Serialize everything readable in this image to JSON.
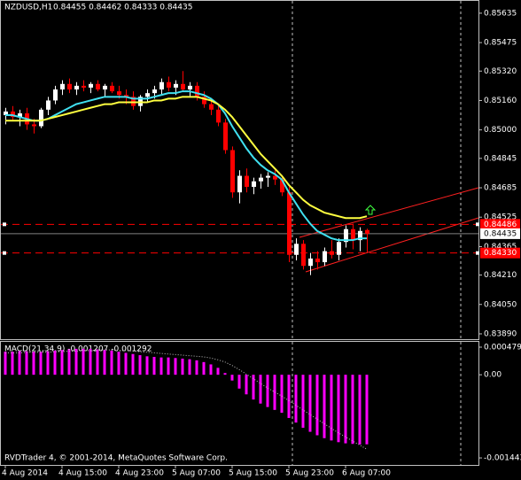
{
  "chart_data": [
    {
      "type": "candlestick",
      "title": "NZDUSD,H1",
      "subtitle": "0.84455 0.84462 0.84333 0.84435",
      "categories": [
        "4 Aug 2014",
        null,
        null,
        null,
        null,
        null,
        null,
        null,
        "4 Aug 15:00",
        null,
        null,
        null,
        null,
        null,
        null,
        null,
        "4 Aug 23:00",
        null,
        null,
        null,
        null,
        null,
        null,
        null,
        "5 Aug 07:00",
        null,
        null,
        null,
        null,
        null,
        null,
        null,
        "5 Aug 15:00",
        null,
        null,
        null,
        null,
        null,
        null,
        null,
        "5 Aug 23:00",
        null,
        null,
        null,
        null,
        null,
        null,
        null,
        "6 Aug 07:00",
        null,
        null,
        null
      ],
      "open": [
        0.8508,
        0.851,
        0.8507,
        0.8509,
        0.8503,
        0.8502,
        0.8511,
        0.8516,
        0.8522,
        0.8525,
        0.8522,
        0.8524,
        0.8523,
        0.8525,
        0.8522,
        0.8524,
        0.8521,
        0.8519,
        0.8518,
        0.8513,
        0.8518,
        0.852,
        0.8522,
        0.8526,
        0.8523,
        0.8525,
        0.8522,
        0.8524,
        0.8518,
        0.8514,
        0.8511,
        0.8504,
        0.8489,
        0.8466,
        0.8475,
        0.8469,
        0.8472,
        0.8474,
        0.8475,
        0.8473,
        0.8466,
        0.8432,
        0.8438,
        0.8426,
        0.843,
        0.8428,
        0.8434,
        0.8432,
        0.8439,
        0.8446,
        0.844,
        0.84455
      ],
      "high": [
        0.8512,
        0.8513,
        0.8511,
        0.8512,
        0.8506,
        0.8512,
        0.8518,
        0.8524,
        0.8527,
        0.8528,
        0.8526,
        0.8527,
        0.8526,
        0.8527,
        0.8525,
        0.8526,
        0.8524,
        0.8522,
        0.8521,
        0.8519,
        0.8522,
        0.8524,
        0.8528,
        0.8529,
        0.8527,
        0.8532,
        0.8526,
        0.8526,
        0.8521,
        0.8517,
        0.8513,
        0.8506,
        0.8491,
        0.8478,
        0.8479,
        0.8474,
        0.8476,
        0.8477,
        0.8478,
        0.8475,
        0.8469,
        0.8441,
        0.844,
        0.8433,
        0.8434,
        0.8436,
        0.844,
        0.8441,
        0.8448,
        0.8449,
        0.8447,
        0.84462
      ],
      "low": [
        0.8503,
        0.8505,
        0.8502,
        0.85,
        0.8498,
        0.8501,
        0.8508,
        0.8514,
        0.8519,
        0.852,
        0.8519,
        0.8521,
        0.852,
        0.8521,
        0.8518,
        0.852,
        0.8517,
        0.8514,
        0.8511,
        0.851,
        0.8515,
        0.8517,
        0.8519,
        0.8521,
        0.8519,
        0.8521,
        0.8518,
        0.8516,
        0.8512,
        0.8508,
        0.8502,
        0.8487,
        0.8463,
        0.846,
        0.8466,
        0.8465,
        0.8468,
        0.8469,
        0.847,
        0.8464,
        0.8428,
        0.8429,
        0.8424,
        0.8421,
        0.8424,
        0.8426,
        0.843,
        0.8429,
        0.8436,
        0.8435,
        0.8434,
        0.84333
      ],
      "close": [
        0.851,
        0.8507,
        0.8509,
        0.8503,
        0.8502,
        0.8511,
        0.8516,
        0.8522,
        0.8525,
        0.8522,
        0.8524,
        0.8523,
        0.8525,
        0.8522,
        0.8524,
        0.8521,
        0.8519,
        0.8518,
        0.8513,
        0.8518,
        0.852,
        0.8522,
        0.8526,
        0.8523,
        0.8525,
        0.8522,
        0.8524,
        0.8518,
        0.8514,
        0.8511,
        0.8504,
        0.8489,
        0.8466,
        0.8475,
        0.8469,
        0.8472,
        0.8474,
        0.8475,
        0.8473,
        0.8466,
        0.8432,
        0.8438,
        0.8426,
        0.843,
        0.8428,
        0.8434,
        0.8432,
        0.8439,
        0.8446,
        0.844,
        0.8445,
        0.84435
      ],
      "up_color": "#ffffff",
      "down_color": "#ff0000",
      "lines": [
        {
          "color": "#40e0f0",
          "values": [
            0.8508,
            0.8508,
            0.8507,
            0.8506,
            0.8505,
            0.8505,
            0.8506,
            0.8508,
            0.851,
            0.8512,
            0.8514,
            0.8515,
            0.8516,
            0.8517,
            0.8518,
            0.8518,
            0.8518,
            0.8518,
            0.8517,
            0.8517,
            0.8517,
            0.8518,
            0.8519,
            0.852,
            0.852,
            0.8521,
            0.8521,
            0.852,
            0.8519,
            0.8517,
            0.8514,
            0.8509,
            0.8502,
            0.8496,
            0.849,
            0.8485,
            0.8481,
            0.8478,
            0.8476,
            0.8473,
            0.8466,
            0.846,
            0.8454,
            0.8449,
            0.8445,
            0.8443,
            0.8441,
            0.844,
            0.844,
            0.844,
            0.8441,
            0.8441
          ]
        },
        {
          "color": "#ffff40",
          "values": [
            0.8505,
            0.8505,
            0.8505,
            0.8505,
            0.8505,
            0.8505,
            0.8506,
            0.8507,
            0.8508,
            0.8509,
            0.851,
            0.8511,
            0.8512,
            0.8513,
            0.8514,
            0.8514,
            0.8515,
            0.8515,
            0.8515,
            0.8515,
            0.8515,
            0.8516,
            0.8516,
            0.8517,
            0.8517,
            0.8518,
            0.8518,
            0.8518,
            0.8517,
            0.8516,
            0.8514,
            0.8511,
            0.8507,
            0.8502,
            0.8497,
            0.8492,
            0.8487,
            0.8483,
            0.8479,
            0.8475,
            0.847,
            0.8466,
            0.8462,
            0.8459,
            0.8457,
            0.8455,
            0.8454,
            0.8453,
            0.8452,
            0.8452,
            0.8452,
            0.8453
          ]
        }
      ],
      "horizontal_lines": [
        {
          "value": 0.84486,
          "color": "#ff0000"
        },
        {
          "value": 0.8433,
          "label": "0.84330",
          "color": "#ff0000"
        }
      ],
      "last_price": 0.84435,
      "ylim": [
        0.83861,
        0.85702
      ],
      "yticks": [
        0.85635,
        0.85475,
        {
          "value": 0.8532,
          "label": "0.85320"
        },
        {
          "value": 0.8516,
          "label": "0.85160"
        },
        {
          "value": 0.85,
          "label": "0.85000"
        },
        0.84845,
        0.84685,
        0.84525,
        0.84365,
        {
          "value": 0.8421,
          "label": "0.84210"
        },
        {
          "value": 0.8405,
          "label": "0.84050"
        },
        {
          "value": 0.8389,
          "label": "0.83890"
        }
      ]
    },
    {
      "type": "macd",
      "title": "MACD(21,34,9) -0.001207 -0.001292",
      "footer": "RVDTrader 4, © 2001-2014, MetaQuotes Software Corp.",
      "values": [
        0.0004,
        0.0004,
        0.00041,
        0.00041,
        0.0004,
        0.0004,
        0.00041,
        0.00042,
        0.00043,
        0.00044,
        0.00045,
        0.00045,
        0.00045,
        0.00044,
        0.00043,
        0.00042,
        0.0004,
        0.00038,
        0.00036,
        0.00034,
        0.00032,
        0.00031,
        0.0003,
        0.0003,
        0.00029,
        0.00028,
        0.00027,
        0.00025,
        0.00022,
        0.00018,
        0.00012,
        3e-05,
        -0.0001,
        -0.00024,
        -0.00034,
        -0.00043,
        -0.0005,
        -0.00056,
        -0.00061,
        -0.00066,
        -0.00075,
        -0.00083,
        -0.00092,
        -0.00099,
        -0.00105,
        -0.0011,
        -0.00114,
        -0.00117,
        -0.00119,
        -0.0012,
        -0.00121,
        -0.001207
      ],
      "color": "#ff00ff",
      "signal": {
        "color": "#c0c0c0",
        "values": [
          0.00038,
          0.00038,
          0.00038,
          0.00039,
          0.00039,
          0.00039,
          0.00039,
          0.0004,
          0.0004,
          0.00041,
          0.00041,
          0.00042,
          0.00042,
          0.00043,
          0.00043,
          0.00043,
          0.00042,
          0.00042,
          0.00041,
          0.0004,
          0.00039,
          0.00038,
          0.00037,
          0.00036,
          0.00035,
          0.00034,
          0.00033,
          0.00032,
          0.00031,
          0.00029,
          0.00026,
          0.00022,
          0.00016,
          9e-05,
          1e-05,
          -7e-05,
          -0.00015,
          -0.00023,
          -0.0003,
          -0.00037,
          -0.00045,
          -0.00053,
          -0.00061,
          -0.00069,
          -0.00077,
          -0.00085,
          -0.00093,
          -0.00101,
          -0.00108,
          -0.00115,
          -0.00122,
          -0.001292
        ]
      },
      "ylim": [
        -0.001565,
        0.000571
      ],
      "yticks": [
        0.000479,
        {
          "value": 0,
          "label": "0.00"
        },
        -0.001443
      ]
    }
  ]
}
